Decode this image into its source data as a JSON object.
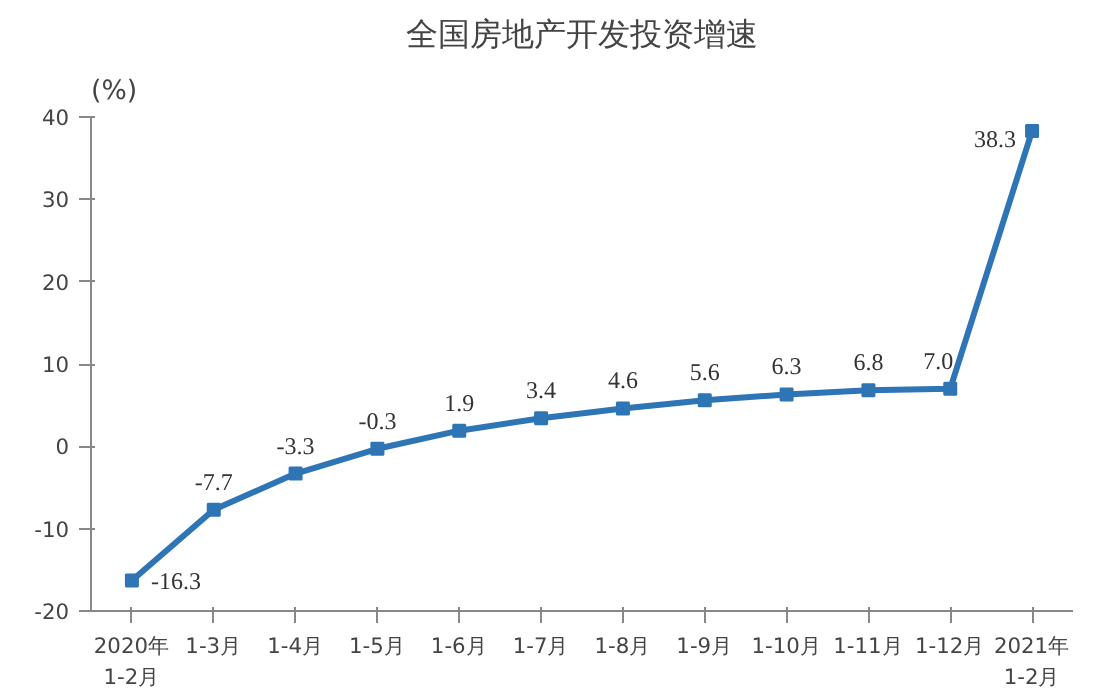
{
  "chart_data": {
    "type": "line",
    "title": "全国房地产开发投资增速",
    "ylabel": "(%)",
    "categories": [
      "2020年\n1-2月",
      "1-3月",
      "1-4月",
      "1-5月",
      "1-6月",
      "1-7月",
      "1-8月",
      "1-9月",
      "1-10月",
      "1-11月",
      "1-12月",
      "2021年\n1-2月"
    ],
    "series": [
      {
        "color": "#2e75b6",
        "values": [
          -16.3,
          -7.7,
          -3.3,
          -0.3,
          1.9,
          3.4,
          4.6,
          5.6,
          6.3,
          6.8,
          7.0,
          38.3
        ],
        "value_labels": [
          "-16.3",
          "-7.7",
          "-3.3",
          "-0.3",
          "1.9",
          "3.4",
          "4.6",
          "5.6",
          "6.3",
          "6.8",
          "7.0",
          "38.3"
        ]
      }
    ],
    "ylim": [
      -20,
      40
    ],
    "yticks": [
      -20,
      -10,
      0,
      10,
      20,
      30,
      40
    ],
    "grid": false,
    "marker": "square",
    "line_style": "solid"
  }
}
